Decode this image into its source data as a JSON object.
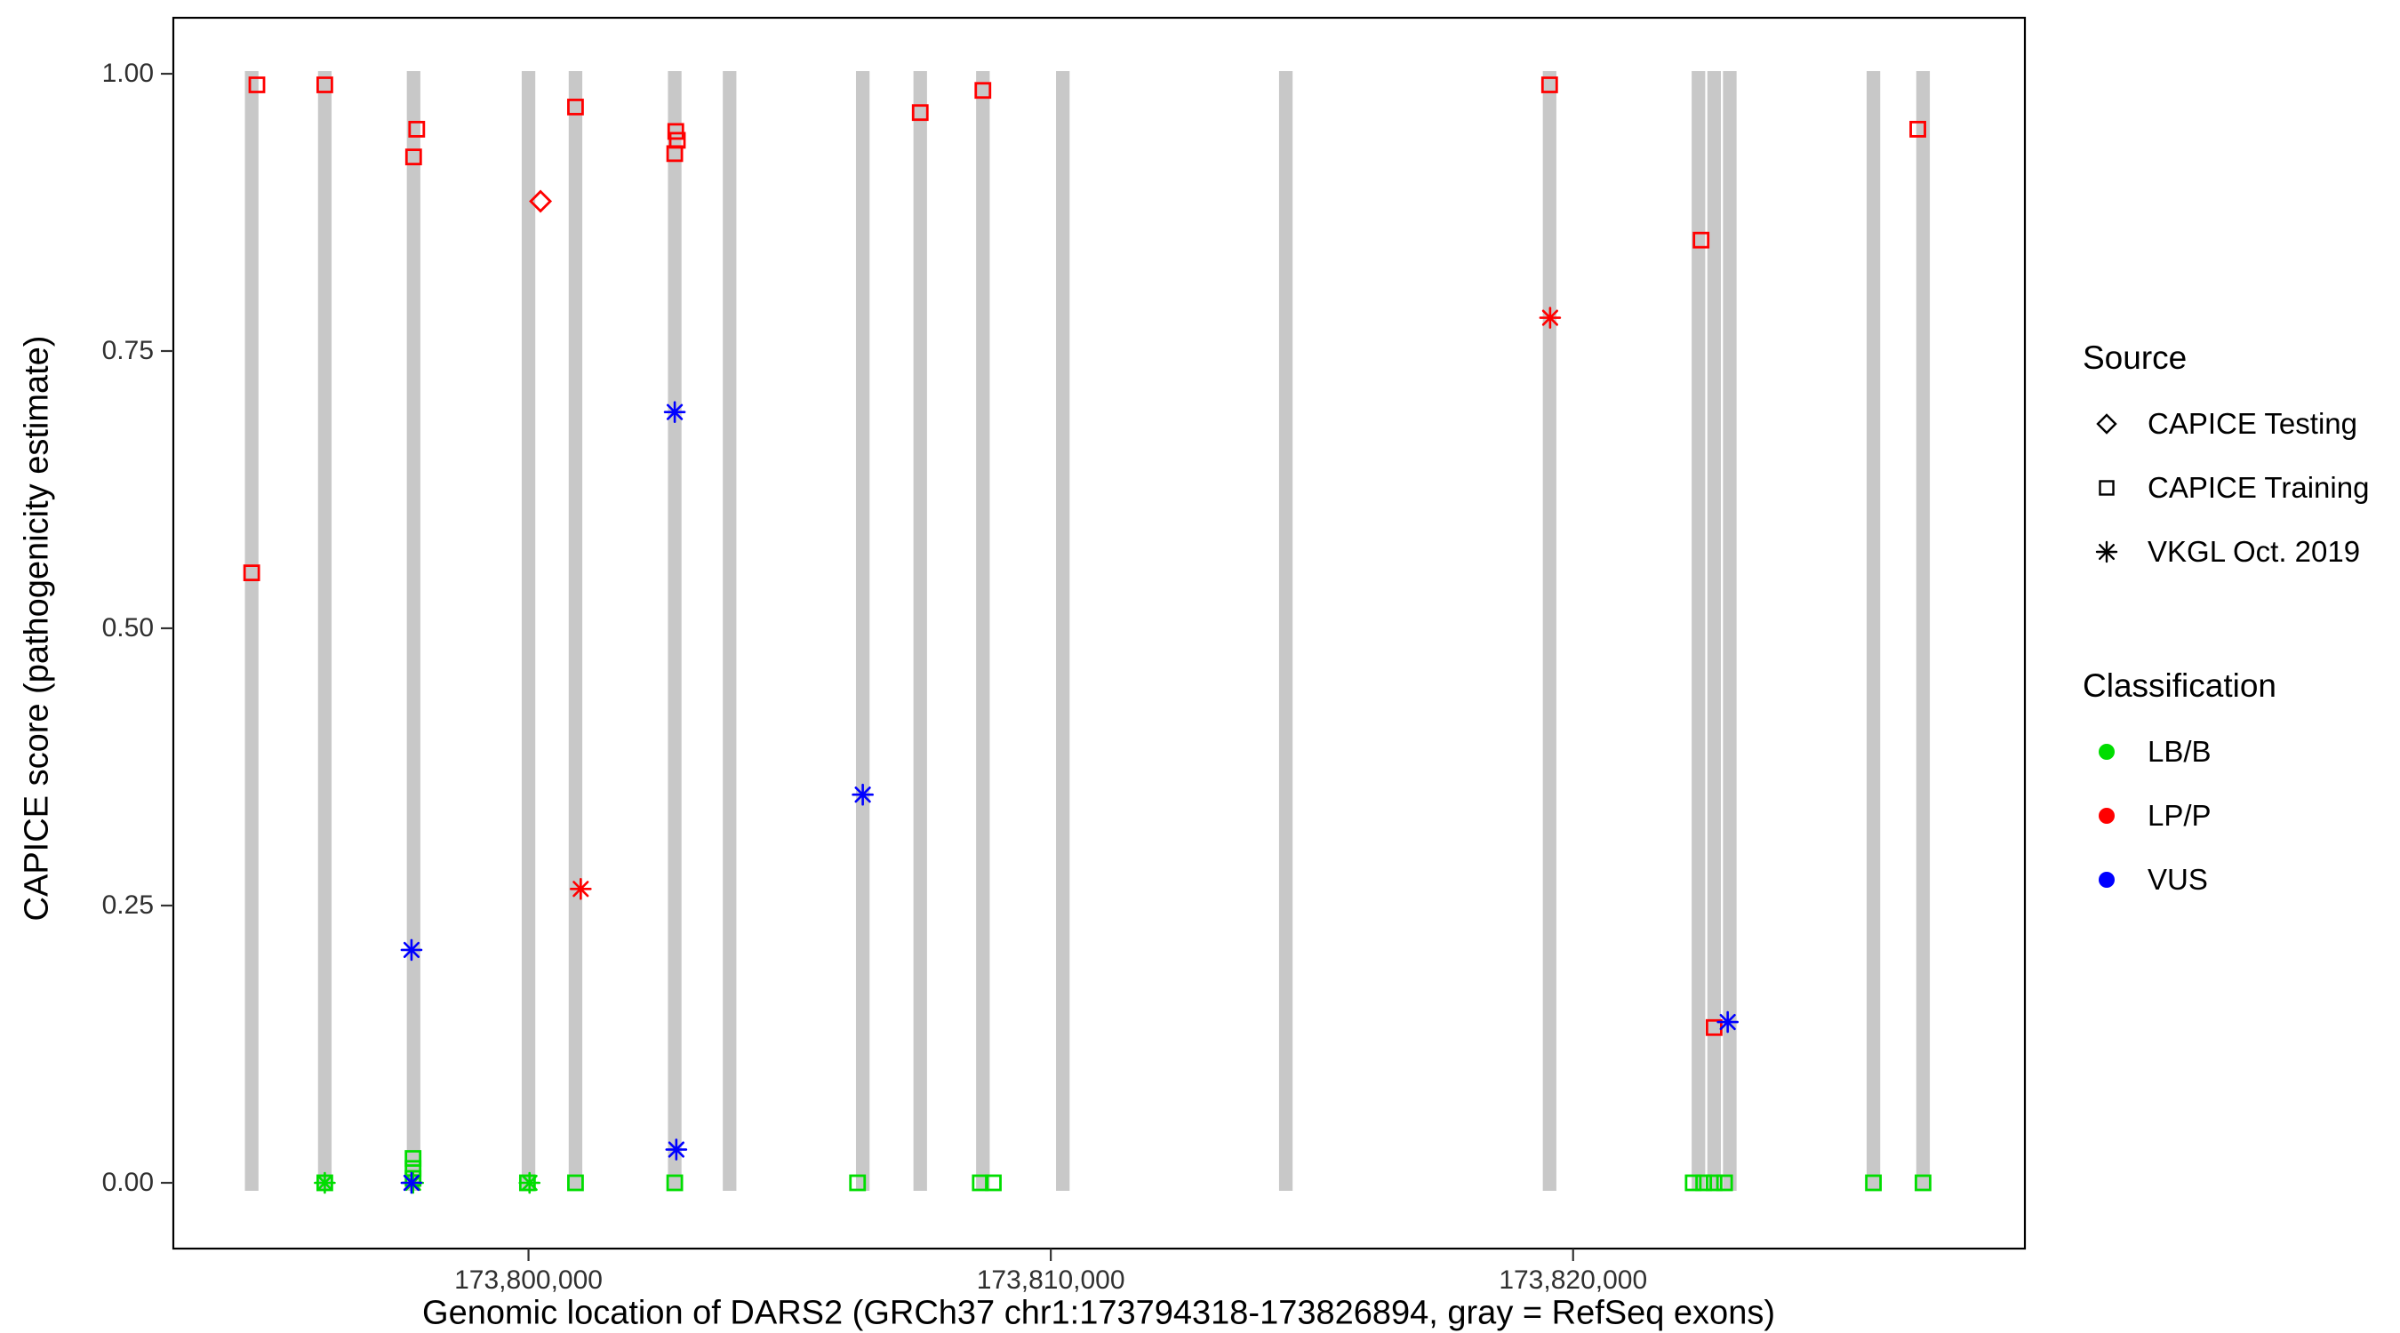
{
  "legend": {
    "source_title": "Source",
    "source_items": [
      {
        "label": "CAPICE Testing",
        "shape": "diamond"
      },
      {
        "label": "CAPICE Training",
        "shape": "square"
      },
      {
        "label": "VKGL Oct. 2019",
        "shape": "asterisk"
      }
    ],
    "classification_title": "Classification",
    "classification_items": [
      {
        "label": "LB/B",
        "color": "#00DD00"
      },
      {
        "label": "LP/P",
        "color": "#FF0000"
      },
      {
        "label": "VUS",
        "color": "#0000FF"
      }
    ]
  },
  "chart_data": {
    "type": "scatter",
    "title": "",
    "xlabel": "Genomic location of DARS2 (GRCh37 chr1:173794318-173826894, gray = RefSeq exons)",
    "ylabel": "CAPICE score (pathogenicity estimate)",
    "x_domain": [
      173793200,
      173828650
    ],
    "y_domain": [
      0,
      1
    ],
    "x_ticks": [
      {
        "value": 173800000,
        "label": "173,800,000"
      },
      {
        "value": 173810000,
        "label": "173,810,000"
      },
      {
        "value": 173820000,
        "label": "173,820,000"
      }
    ],
    "y_ticks": [
      {
        "value": 0.0,
        "label": "0.00"
      },
      {
        "value": 0.25,
        "label": "0.25"
      },
      {
        "value": 0.5,
        "label": "0.50"
      },
      {
        "value": 0.75,
        "label": "0.75"
      },
      {
        "value": 1.0,
        "label": "1.00"
      }
    ],
    "colors": {
      "LB/B": "#00DD00",
      "LP/P": "#FF0000",
      "VUS": "#0000FF",
      "exon": "#C8C8C8"
    },
    "shapes": {
      "CAPICE Testing": "diamond",
      "CAPICE Training": "square",
      "VKGL Oct. 2019": "asterisk"
    },
    "exons": {
      "note": "gray = RefSeq exons",
      "width_bp": 260,
      "centers": [
        173794700,
        173796100,
        173797800,
        173800000,
        173800900,
        173802800,
        173803850,
        173806400,
        173807500,
        173808700,
        173810230,
        173814500,
        173819550,
        173822400,
        173822700,
        173823000,
        173825750,
        173826700
      ]
    },
    "points": [
      {
        "x": 173796100,
        "y": 0.0,
        "source": "CAPICE Training",
        "classification": "LB/B"
      },
      {
        "x": 173797790,
        "y": 0.022,
        "source": "CAPICE Training",
        "classification": "LB/B"
      },
      {
        "x": 173797790,
        "y": 0.013,
        "source": "CAPICE Training",
        "classification": "LB/B"
      },
      {
        "x": 173797790,
        "y": 0.004,
        "source": "CAPICE Training",
        "classification": "LB/B"
      },
      {
        "x": 173799980,
        "y": 0.0,
        "source": "CAPICE Training",
        "classification": "LB/B"
      },
      {
        "x": 173800900,
        "y": 0.0,
        "source": "CAPICE Training",
        "classification": "LB/B"
      },
      {
        "x": 173802800,
        "y": 0.0,
        "source": "CAPICE Training",
        "classification": "LB/B"
      },
      {
        "x": 173806300,
        "y": 0.0,
        "source": "CAPICE Training",
        "classification": "LB/B"
      },
      {
        "x": 173808650,
        "y": 0.0,
        "source": "CAPICE Training",
        "classification": "LB/B"
      },
      {
        "x": 173808900,
        "y": 0.0,
        "source": "CAPICE Training",
        "classification": "LB/B"
      },
      {
        "x": 173822300,
        "y": 0.0,
        "source": "CAPICE Training",
        "classification": "LB/B"
      },
      {
        "x": 173822500,
        "y": 0.0,
        "source": "CAPICE Training",
        "classification": "LB/B"
      },
      {
        "x": 173822700,
        "y": 0.0,
        "source": "CAPICE Training",
        "classification": "LB/B"
      },
      {
        "x": 173822900,
        "y": 0.0,
        "source": "CAPICE Training",
        "classification": "LB/B"
      },
      {
        "x": 173825750,
        "y": 0.0,
        "source": "CAPICE Training",
        "classification": "LB/B"
      },
      {
        "x": 173826700,
        "y": 0.0,
        "source": "CAPICE Training",
        "classification": "LB/B"
      },
      {
        "x": 173796100,
        "y": 0.0,
        "source": "VKGL Oct. 2019",
        "classification": "LB/B"
      },
      {
        "x": 173797790,
        "y": 0.0,
        "source": "VKGL Oct. 2019",
        "classification": "LB/B"
      },
      {
        "x": 173800020,
        "y": 0.0,
        "source": "VKGL Oct. 2019",
        "classification": "LB/B"
      },
      {
        "x": 173794800,
        "y": 0.99,
        "source": "CAPICE Training",
        "classification": "LP/P"
      },
      {
        "x": 173796100,
        "y": 0.99,
        "source": "CAPICE Training",
        "classification": "LP/P"
      },
      {
        "x": 173797860,
        "y": 0.95,
        "source": "CAPICE Training",
        "classification": "LP/P"
      },
      {
        "x": 173797800,
        "y": 0.925,
        "source": "CAPICE Training",
        "classification": "LP/P"
      },
      {
        "x": 173794700,
        "y": 0.55,
        "source": "CAPICE Training",
        "classification": "LP/P"
      },
      {
        "x": 173800900,
        "y": 0.97,
        "source": "CAPICE Training",
        "classification": "LP/P"
      },
      {
        "x": 173802820,
        "y": 0.948,
        "source": "CAPICE Training",
        "classification": "LP/P"
      },
      {
        "x": 173802850,
        "y": 0.94,
        "source": "CAPICE Training",
        "classification": "LP/P"
      },
      {
        "x": 173802800,
        "y": 0.928,
        "source": "CAPICE Training",
        "classification": "LP/P"
      },
      {
        "x": 173807500,
        "y": 0.965,
        "source": "CAPICE Training",
        "classification": "LP/P"
      },
      {
        "x": 173808700,
        "y": 0.985,
        "source": "CAPICE Training",
        "classification": "LP/P"
      },
      {
        "x": 173819550,
        "y": 0.99,
        "source": "CAPICE Training",
        "classification": "LP/P"
      },
      {
        "x": 173822450,
        "y": 0.85,
        "source": "CAPICE Training",
        "classification": "LP/P"
      },
      {
        "x": 173822700,
        "y": 0.14,
        "source": "CAPICE Training",
        "classification": "LP/P"
      },
      {
        "x": 173826600,
        "y": 0.95,
        "source": "CAPICE Training",
        "classification": "LP/P"
      },
      {
        "x": 173800230,
        "y": 0.885,
        "source": "CAPICE Testing",
        "classification": "LP/P"
      },
      {
        "x": 173801000,
        "y": 0.265,
        "source": "VKGL Oct. 2019",
        "classification": "LP/P"
      },
      {
        "x": 173819560,
        "y": 0.78,
        "source": "VKGL Oct. 2019",
        "classification": "LP/P"
      },
      {
        "x": 173797760,
        "y": 0.21,
        "source": "VKGL Oct. 2019",
        "classification": "VUS"
      },
      {
        "x": 173802800,
        "y": 0.695,
        "source": "VKGL Oct. 2019",
        "classification": "VUS"
      },
      {
        "x": 173806400,
        "y": 0.35,
        "source": "VKGL Oct. 2019",
        "classification": "VUS"
      },
      {
        "x": 173802830,
        "y": 0.03,
        "source": "VKGL Oct. 2019",
        "classification": "VUS"
      },
      {
        "x": 173797760,
        "y": 0.0,
        "source": "VKGL Oct. 2019",
        "classification": "VUS"
      },
      {
        "x": 173822960,
        "y": 0.145,
        "source": "VKGL Oct. 2019",
        "classification": "VUS"
      }
    ]
  }
}
